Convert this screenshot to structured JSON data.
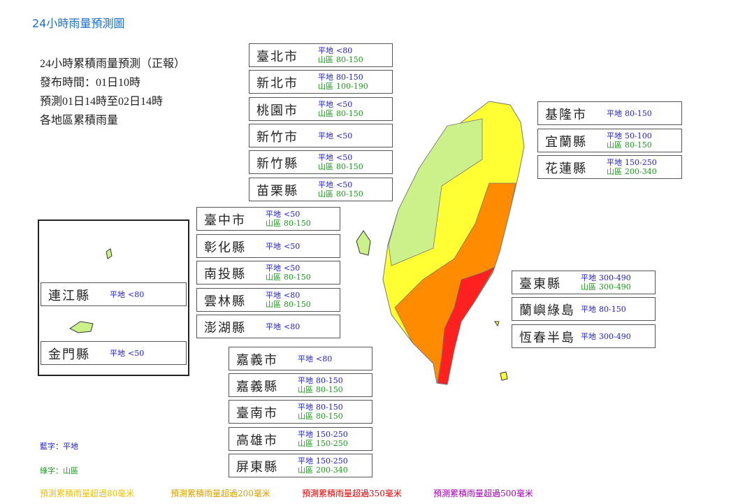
{
  "header": {
    "title": "24小時雨量預測圖"
  },
  "info": [
    "24小時累積雨量預測（正報）",
    "發布時間：01日10時",
    "預測01日14時至02日14時",
    "各地區累積雨量"
  ],
  "regions": [
    {
      "name": "臺北市",
      "rows": [
        {
          "label": "平地",
          "value": "<80"
        },
        {
          "label": "山區",
          "value": "80-150"
        }
      ]
    },
    {
      "name": "新北市",
      "rows": [
        {
          "label": "平地",
          "value": "80-150"
        },
        {
          "label": "山區",
          "value": "100-190"
        }
      ]
    },
    {
      "name": "桃園市",
      "rows": [
        {
          "label": "平地",
          "value": "<50"
        },
        {
          "label": "山區",
          "value": "80-150"
        }
      ]
    },
    {
      "name": "新竹市",
      "rows": [
        {
          "label": "平地",
          "value": "<50"
        }
      ]
    },
    {
      "name": "新竹縣",
      "rows": [
        {
          "label": "平地",
          "value": "<50"
        },
        {
          "label": "山區",
          "value": "80-150"
        }
      ]
    },
    {
      "name": "苗栗縣",
      "rows": [
        {
          "label": "平地",
          "value": "<50"
        },
        {
          "label": "山區",
          "value": "80-150"
        }
      ]
    },
    {
      "name": "臺中市",
      "rows": [
        {
          "label": "平地",
          "value": "<50"
        },
        {
          "label": "山區",
          "value": "80-150"
        }
      ]
    },
    {
      "name": "彰化縣",
      "rows": [
        {
          "label": "平地",
          "value": "<50"
        }
      ]
    },
    {
      "name": "南投縣",
      "rows": [
        {
          "label": "平地",
          "value": "<50"
        },
        {
          "label": "山區",
          "value": "80-150"
        }
      ]
    },
    {
      "name": "雲林縣",
      "rows": [
        {
          "label": "平地",
          "value": "<80"
        },
        {
          "label": "山區",
          "value": "80-150"
        }
      ]
    },
    {
      "name": "澎湖縣",
      "rows": [
        {
          "label": "平地",
          "value": "<80"
        }
      ]
    },
    {
      "name": "嘉義市",
      "rows": [
        {
          "label": "平地",
          "value": "<80"
        }
      ]
    },
    {
      "name": "嘉義縣",
      "rows": [
        {
          "label": "平地",
          "value": "80-150"
        },
        {
          "label": "山區",
          "value": "80-150"
        }
      ]
    },
    {
      "name": "臺南市",
      "rows": [
        {
          "label": "平地",
          "value": "80-150"
        },
        {
          "label": "山區",
          "value": "80-150"
        }
      ]
    },
    {
      "name": "高雄市",
      "rows": [
        {
          "label": "平地",
          "value": "150-250"
        },
        {
          "label": "山區",
          "value": "150-250"
        }
      ]
    },
    {
      "name": "屏東縣",
      "rows": [
        {
          "label": "平地",
          "value": "150-250"
        },
        {
          "label": "山區",
          "value": "200-340"
        }
      ]
    },
    {
      "name": "基隆市",
      "rows": [
        {
          "label": "平地",
          "value": "80-150"
        }
      ]
    },
    {
      "name": "宜蘭縣",
      "rows": [
        {
          "label": "平地",
          "value": "50-100"
        },
        {
          "label": "山區",
          "value": "80-150"
        }
      ]
    },
    {
      "name": "花蓮縣",
      "rows": [
        {
          "label": "平地",
          "value": "150-250"
        },
        {
          "label": "山區",
          "value": "200-340"
        }
      ]
    },
    {
      "name": "臺東縣",
      "rows": [
        {
          "label": "平地",
          "value": "300-490"
        },
        {
          "label": "山區",
          "value": "300-490"
        }
      ]
    },
    {
      "name": "蘭嶼綠島",
      "rows": [
        {
          "label": "平地",
          "value": "80-150"
        }
      ]
    },
    {
      "name": "恆春半島",
      "rows": [
        {
          "label": "平地",
          "value": "300-490"
        }
      ]
    },
    {
      "name": "連江縣",
      "rows": [
        {
          "label": "平地",
          "value": "<80"
        }
      ]
    },
    {
      "name": "金門縣",
      "rows": [
        {
          "label": "平地",
          "value": "<50"
        }
      ]
    }
  ],
  "legend": [
    "藍字：平地",
    "綠字：山區"
  ],
  "footnotes": [
    "預測累積雨量超過80毫米",
    "預測累積雨量超過200毫米",
    "預測累積雨量超過350毫米",
    "預測累積雨量超過500毫米"
  ]
}
